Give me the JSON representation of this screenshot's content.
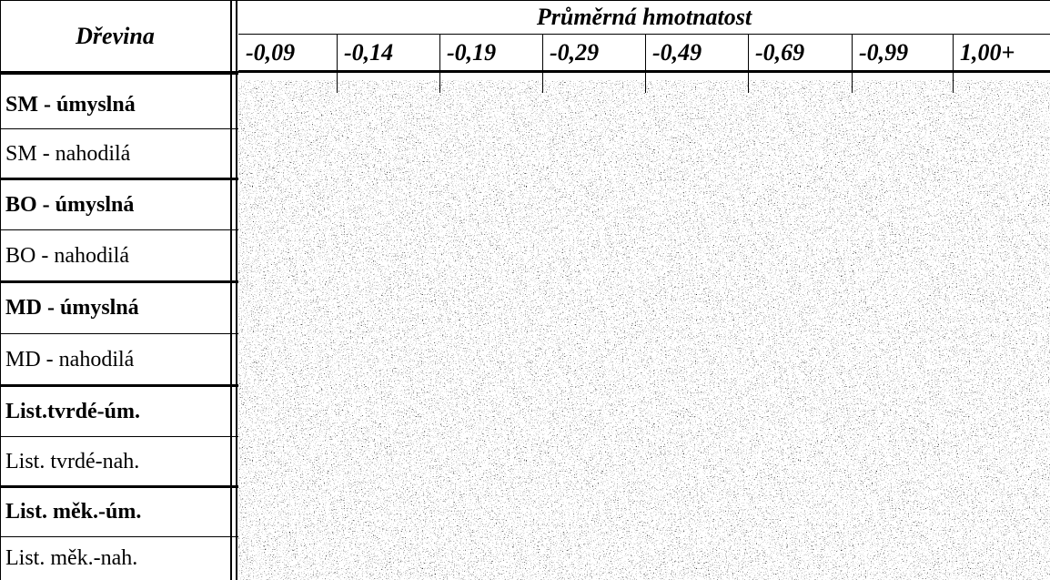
{
  "header": {
    "first_col": "Dřevina",
    "group": "Průměrná hmotnatost",
    "columns": [
      "-0,09",
      "-0,14",
      "-0,19",
      "-0,29",
      "-0,49",
      "-0,69",
      "-0,99",
      "1,00+"
    ]
  },
  "rows": [
    "SM - úmyslná",
    "SM - nahodilá",
    "BO - úmyslná",
    "BO - nahodilá",
    "MD - úmyslná",
    "MD - nahodilá",
    "List.tvrdé-úm.",
    "List. tvrdé-nah.",
    "List. měk.-úm.",
    "List. měk.-nah."
  ]
}
